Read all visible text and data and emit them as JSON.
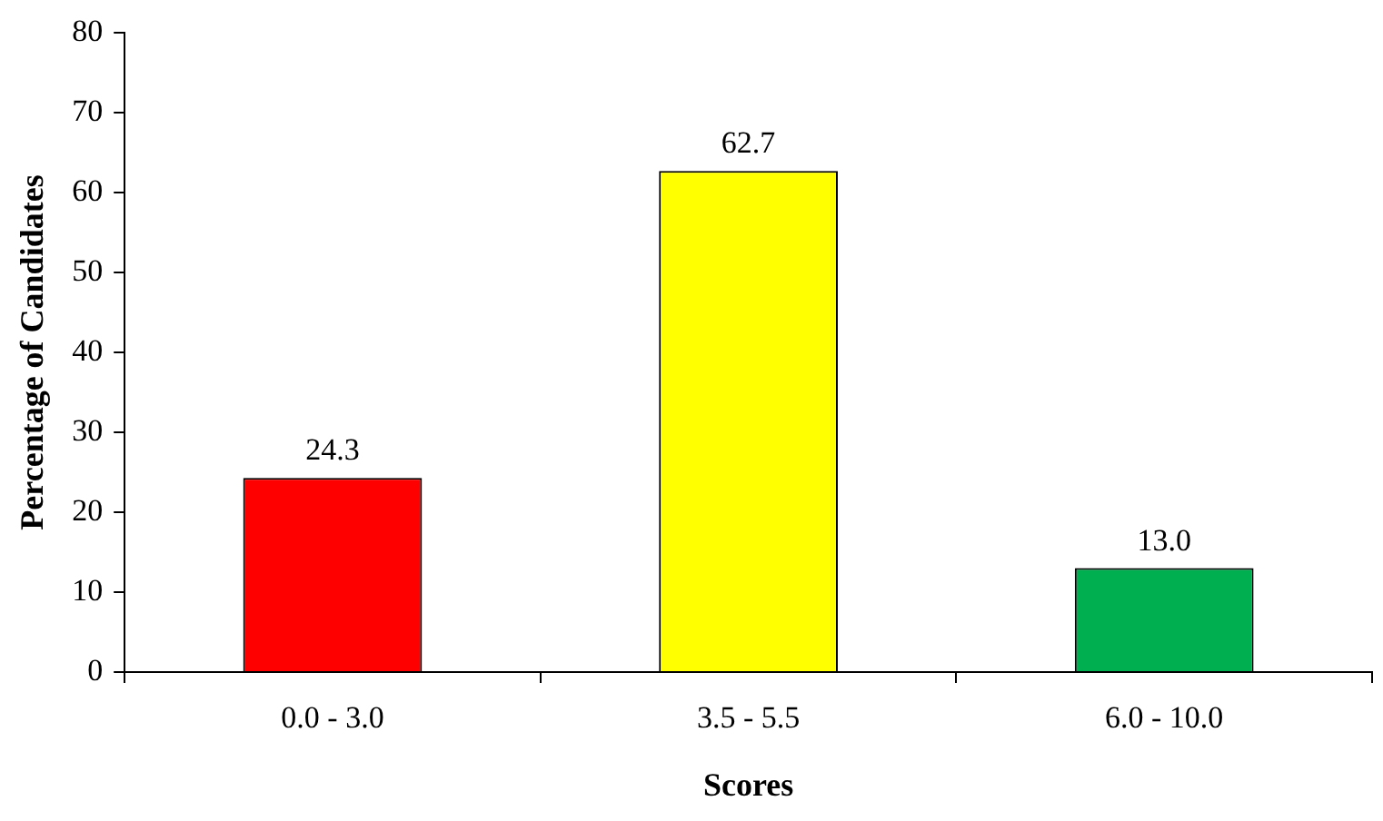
{
  "chart_data": {
    "type": "bar",
    "xlabel": "Scores",
    "ylabel": "Percentage of Candidates",
    "categories": [
      "0.0 - 3.0",
      "3.5 - 5.5",
      "6.0 - 10.0"
    ],
    "values": [
      24.3,
      62.7,
      13.0
    ],
    "colors": [
      "#ff0000",
      "#ffff00",
      "#00b050"
    ],
    "value_labels": [
      "24.3",
      "62.7",
      "13.0"
    ],
    "ylim": [
      0,
      80
    ],
    "yticks": [
      0,
      10,
      20,
      30,
      40,
      50,
      60,
      70,
      80
    ],
    "grid": false,
    "legend": false
  }
}
